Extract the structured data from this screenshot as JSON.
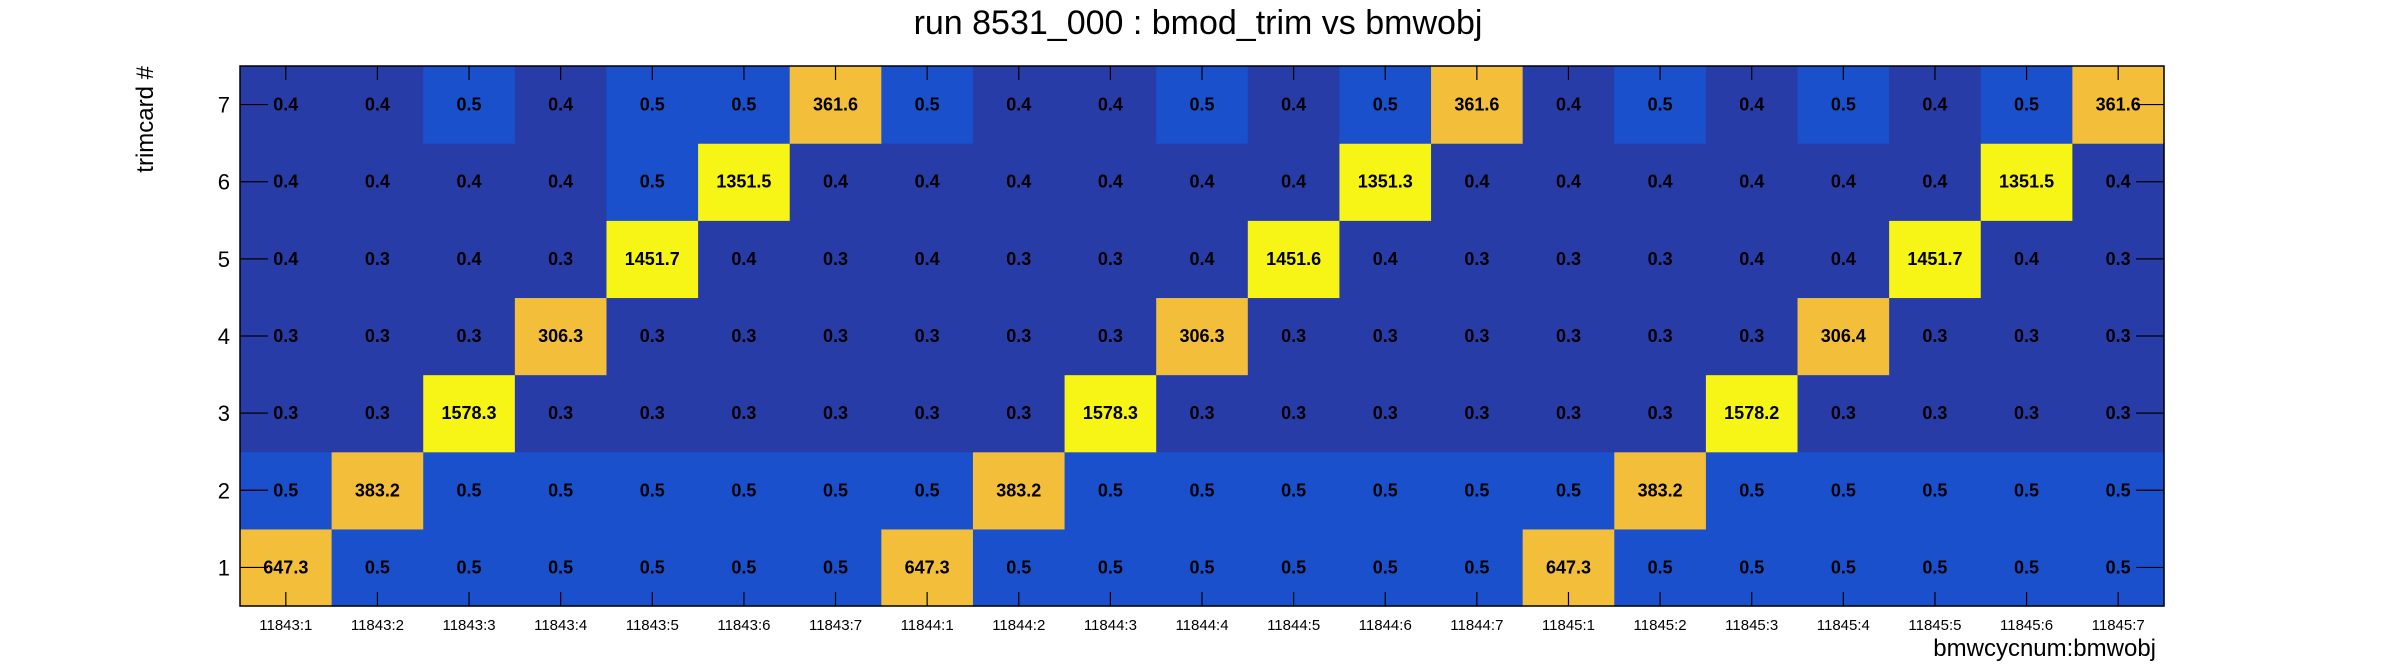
{
  "chart_data": {
    "type": "heatmap",
    "title": "run 8531_000 : bmod_trim vs bmwobj",
    "xlabel": "bmwcycnum:bmwobj",
    "ylabel": "trimcard #",
    "x_categories": [
      "11843:1",
      "11843:2",
      "11843:3",
      "11843:4",
      "11843:5",
      "11843:6",
      "11843:7",
      "11844:1",
      "11844:2",
      "11844:3",
      "11844:4",
      "11844:5",
      "11844:6",
      "11844:7",
      "11845:1",
      "11845:2",
      "11845:3",
      "11845:4",
      "11845:5",
      "11845:6",
      "11845:7"
    ],
    "y_categories": [
      "1",
      "2",
      "3",
      "4",
      "5",
      "6",
      "7"
    ],
    "z_rows": [
      [
        647.3,
        0.5,
        0.5,
        0.5,
        0.5,
        0.5,
        0.5,
        647.3,
        0.5,
        0.5,
        0.5,
        0.5,
        0.5,
        0.5,
        647.3,
        0.5,
        0.5,
        0.5,
        0.5,
        0.5,
        0.5
      ],
      [
        0.5,
        383.2,
        0.5,
        0.5,
        0.5,
        0.5,
        0.5,
        0.5,
        383.2,
        0.5,
        0.5,
        0.5,
        0.5,
        0.5,
        0.5,
        383.2,
        0.5,
        0.5,
        0.5,
        0.5,
        0.5
      ],
      [
        0.3,
        0.3,
        1578.3,
        0.3,
        0.3,
        0.3,
        0.3,
        0.3,
        0.3,
        1578.3,
        0.3,
        0.3,
        0.3,
        0.3,
        0.3,
        0.3,
        1578.2,
        0.3,
        0.3,
        0.3,
        0.3
      ],
      [
        0.3,
        0.3,
        0.3,
        306.3,
        0.3,
        0.3,
        0.3,
        0.3,
        0.3,
        0.3,
        306.3,
        0.3,
        0.3,
        0.3,
        0.3,
        0.3,
        0.3,
        306.4,
        0.3,
        0.3,
        0.3
      ],
      [
        0.4,
        0.3,
        0.4,
        0.3,
        1451.7,
        0.4,
        0.3,
        0.4,
        0.3,
        0.3,
        0.4,
        1451.6,
        0.4,
        0.3,
        0.3,
        0.3,
        0.4,
        0.4,
        1451.7,
        0.4,
        0.3
      ],
      [
        0.4,
        0.4,
        0.4,
        0.4,
        0.5,
        1351.5,
        0.4,
        0.4,
        0.4,
        0.4,
        0.4,
        0.4,
        1351.3,
        0.4,
        0.4,
        0.4,
        0.4,
        0.4,
        0.4,
        1351.5,
        0.4
      ],
      [
        0.4,
        0.4,
        0.5,
        0.4,
        0.5,
        0.5,
        361.6,
        0.5,
        0.4,
        0.4,
        0.5,
        0.4,
        0.5,
        361.6,
        0.4,
        0.5,
        0.4,
        0.5,
        0.4,
        0.5,
        361.6
      ]
    ],
    "colors": {
      "low_dark": "#283ca8",
      "low_mid": "#1a50cc",
      "high_orange": "#f3bf3a",
      "high_yellow": "#f7f516"
    },
    "grid": false,
    "legend": "none"
  }
}
